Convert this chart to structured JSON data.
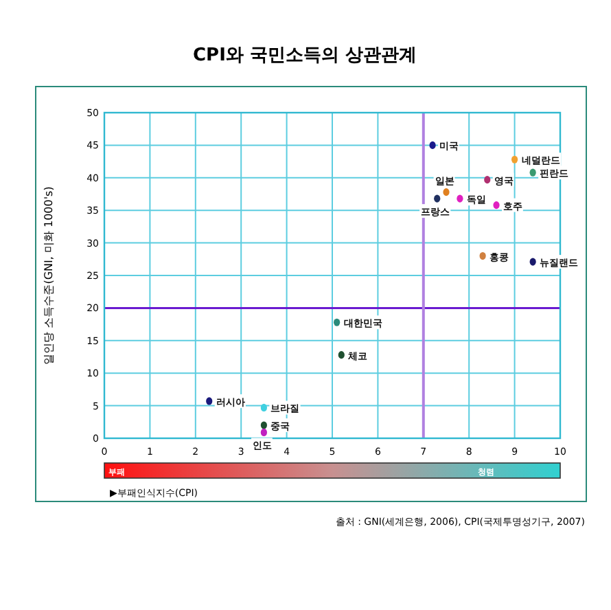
{
  "chart_data": {
    "type": "scatter",
    "title": "CPI와 국민소득의 상관관계",
    "xlabel": "▶부패인식지수(CPI)",
    "ylabel": "일인당 소득수준(GNI, 미화 1000's)",
    "xlim": [
      0,
      10
    ],
    "xticks": [
      0,
      1,
      2,
      3,
      4,
      5,
      6,
      7,
      8,
      9,
      10
    ],
    "ylim": [
      0,
      50
    ],
    "yticks": [
      0,
      5,
      10,
      15,
      20,
      25,
      30,
      35,
      40,
      45,
      50
    ],
    "grid": true,
    "marker": "circle",
    "ref_lines": [
      {
        "axis": "y",
        "value": 20,
        "color": "#6a1ad0"
      },
      {
        "axis": "x",
        "value": 7,
        "color": "#b080e0"
      }
    ],
    "series": [
      {
        "name": "미국",
        "color": "#1a1a8c",
        "x": [
          7.2
        ],
        "values": [
          45.0
        ]
      },
      {
        "name": "네덜란드",
        "color": "#f0a030",
        "x": [
          9.0
        ],
        "values": [
          42.8
        ]
      },
      {
        "name": "핀란드",
        "color": "#3a9a70",
        "x": [
          9.4
        ],
        "values": [
          40.8
        ]
      },
      {
        "name": "영국",
        "color": "#b03070",
        "x": [
          8.4
        ],
        "values": [
          39.7
        ]
      },
      {
        "name": "일본",
        "color": "#e08020",
        "x": [
          7.5
        ],
        "values": [
          37.8
        ]
      },
      {
        "name": "프랑스",
        "color": "#203060",
        "x": [
          7.3
        ],
        "values": [
          36.8
        ]
      },
      {
        "name": "독일",
        "color": "#e020c0",
        "x": [
          7.8
        ],
        "values": [
          36.8
        ]
      },
      {
        "name": "호주",
        "color": "#e020c0",
        "x": [
          8.6
        ],
        "values": [
          35.8
        ]
      },
      {
        "name": "홍콩",
        "color": "#d08040",
        "x": [
          8.3
        ],
        "values": [
          28.0
        ]
      },
      {
        "name": "뉴질랜드",
        "color": "#1a1a6c",
        "x": [
          9.4
        ],
        "values": [
          27.1
        ]
      },
      {
        "name": "대한민국",
        "color": "#2a8a7a",
        "x": [
          5.1
        ],
        "values": [
          17.8
        ]
      },
      {
        "name": "체코",
        "color": "#205030",
        "x": [
          5.2
        ],
        "values": [
          12.8
        ]
      },
      {
        "name": "러시아",
        "color": "#1a1a7c",
        "x": [
          2.3
        ],
        "values": [
          5.7
        ]
      },
      {
        "name": "브라질",
        "color": "#40d0e0",
        "x": [
          3.5
        ],
        "values": [
          4.7
        ]
      },
      {
        "name": "중국",
        "color": "#205030",
        "x": [
          3.5
        ],
        "values": [
          2.0
        ]
      },
      {
        "name": "인도",
        "color": "#c020c0",
        "x": [
          3.5
        ],
        "values": [
          0.9
        ]
      }
    ],
    "annotations": [
      "부패",
      "청렴",
      "출처 : GNI(세계은행, 2006), CPI(국제투명성기구, 2007)"
    ]
  }
}
